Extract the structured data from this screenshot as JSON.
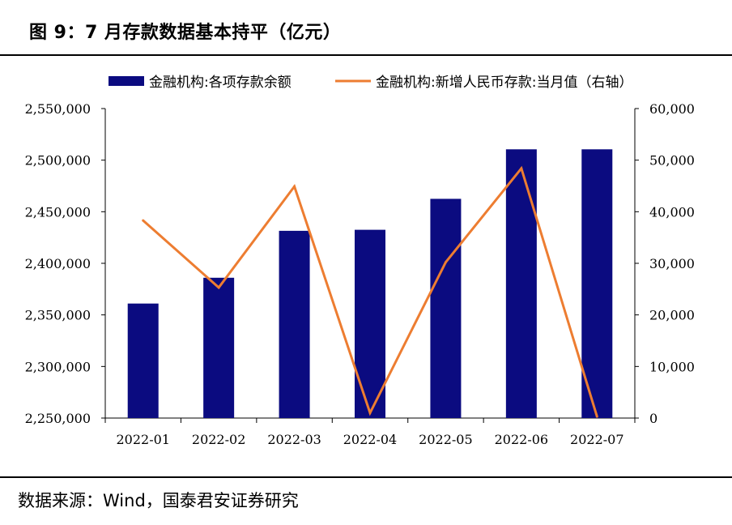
{
  "title": "图 9：7 月存款数据基本持平（亿元）",
  "source": "数据来源：Wind，国泰君安证券研究",
  "colors": {
    "bar": "#0b0b80",
    "line": "#ed7d31"
  },
  "chart_data": {
    "type": "bar+line",
    "categories": [
      "2022-01",
      "2022-02",
      "2022-03",
      "2022-04",
      "2022-05",
      "2022-06",
      "2022-07"
    ],
    "series": [
      {
        "name": "金融机构:各项存款余额",
        "type": "bar",
        "axis": "left",
        "values": [
          2361000,
          2386000,
          2431500,
          2432500,
          2462500,
          2510500,
          2510500
        ]
      },
      {
        "name": "金融机构:新增人民币存款:当月值（右轴）",
        "type": "line",
        "axis": "right",
        "values": [
          38300,
          25300,
          44900,
          1000,
          30200,
          48400,
          300
        ]
      }
    ],
    "left_axis": {
      "ylim": [
        2250000,
        2550000
      ],
      "ticks": [
        "2,250,000",
        "2,300,000",
        "2,350,000",
        "2,400,000",
        "2,450,000",
        "2,500,000",
        "2,550,000"
      ]
    },
    "right_axis": {
      "ylim": [
        0,
        60000
      ],
      "ticks": [
        "0",
        "10,000",
        "20,000",
        "30,000",
        "40,000",
        "50,000",
        "60,000"
      ]
    },
    "legend_position": "top",
    "grid": false
  }
}
